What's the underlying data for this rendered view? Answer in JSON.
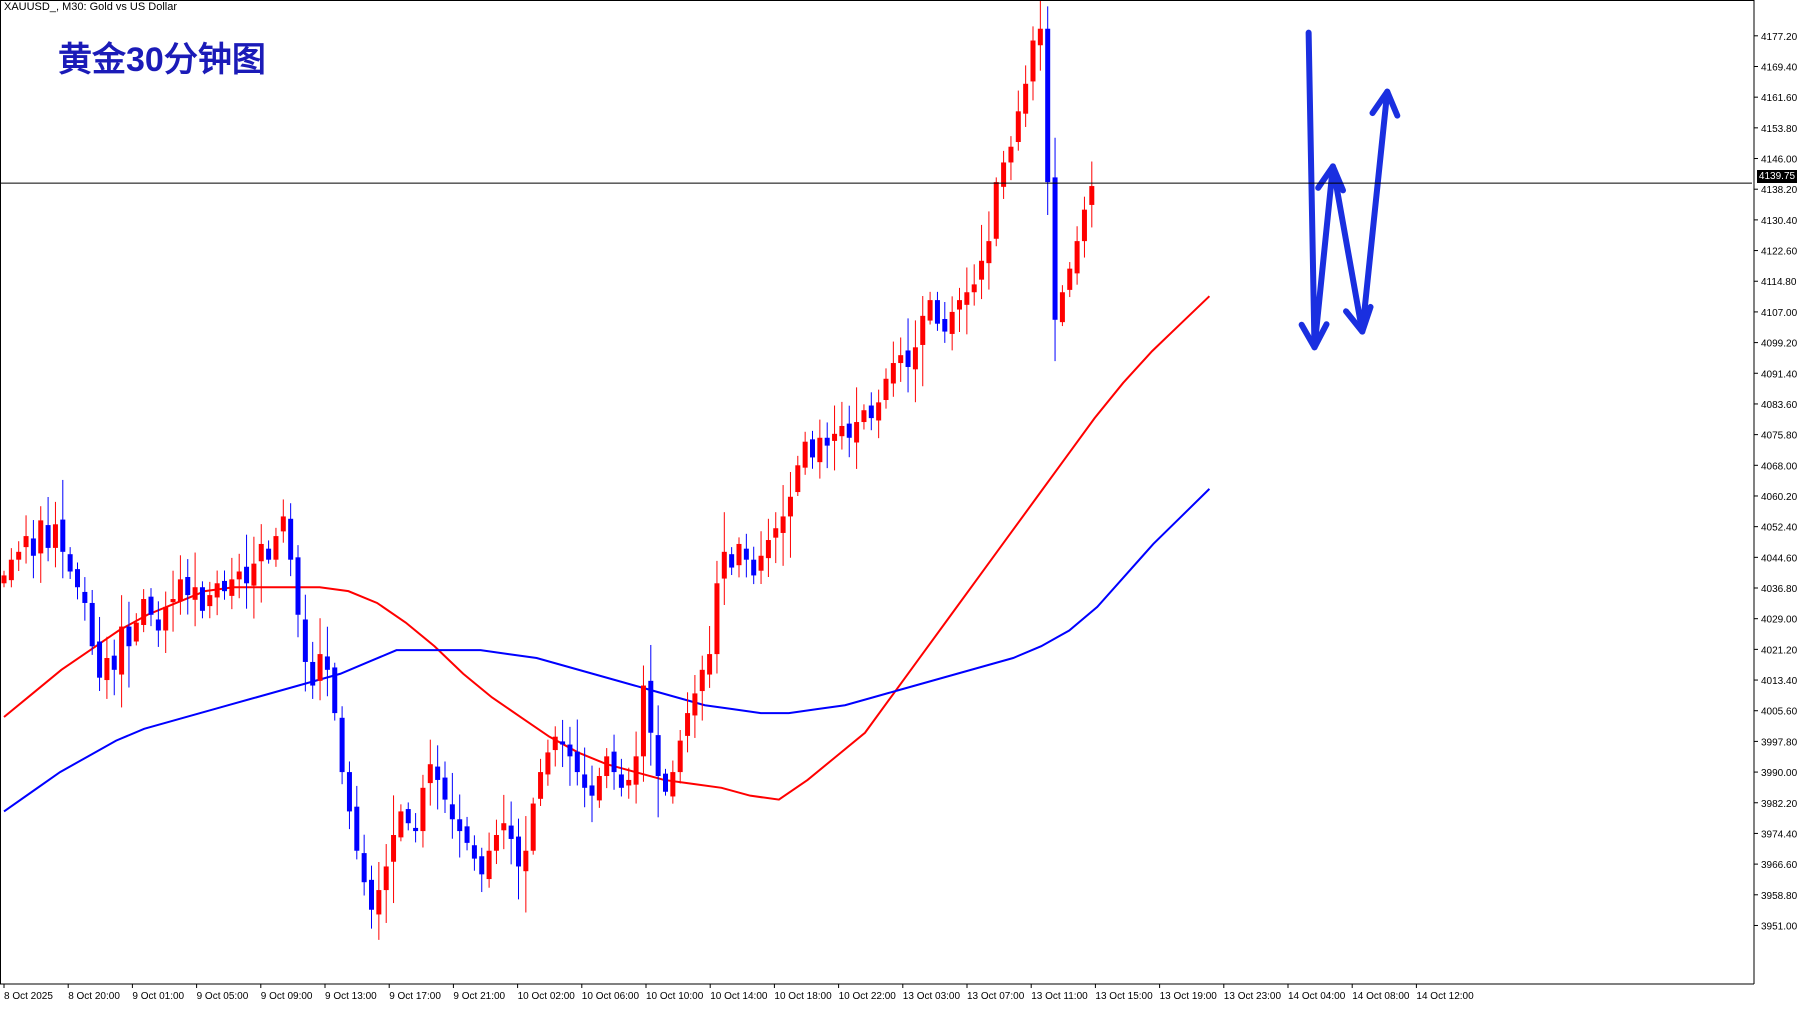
{
  "header": {
    "symbol_line": "XAUUSD_, M30:  Gold vs US Dollar"
  },
  "overlay": {
    "title": "黄金30分钟图"
  },
  "current_price": "4139.75",
  "colors": {
    "bull": "#ff0000",
    "bear": "#0000ff",
    "ma_fast": "#ff0000",
    "ma_slow": "#0000ff",
    "arrow": "#1a2fe0",
    "grid_axis": "#000000"
  },
  "chart_data": {
    "type": "candlestick",
    "symbol": "XAUUSD_",
    "timeframe": "M30",
    "ylim": [
      3944,
      4183
    ],
    "y_ticks": [
      "4177.20",
      "4169.40",
      "4161.60",
      "4153.80",
      "4146.00",
      "4138.20",
      "4130.40",
      "4122.60",
      "4114.80",
      "4107.00",
      "4099.20",
      "4091.40",
      "4083.60",
      "4075.80",
      "4068.00",
      "4060.20",
      "4052.40",
      "4044.60",
      "4036.80",
      "4029.00",
      "4021.20",
      "4013.40",
      "4005.60",
      "3997.80",
      "3990.00",
      "3982.20",
      "3974.40",
      "3966.60",
      "3958.80",
      "3951.00"
    ],
    "x_ticks": [
      "8 Oct 2025",
      "8 Oct 20:00",
      "9 Oct 01:00",
      "9 Oct 05:00",
      "9 Oct 09:00",
      "9 Oct 13:00",
      "9 Oct 17:00",
      "9 Oct 21:00",
      "10 Oct 02:00",
      "10 Oct 06:00",
      "10 Oct 10:00",
      "10 Oct 14:00",
      "10 Oct 18:00",
      "10 Oct 22:00",
      "13 Oct 03:00",
      "13 Oct 07:00",
      "13 Oct 11:00",
      "13 Oct 15:00",
      "13 Oct 19:00",
      "13 Oct 23:00",
      "14 Oct 04:00",
      "14 Oct 08:00",
      "14 Oct 12:00"
    ],
    "horizontal_line": 4139.75,
    "close_path": [
      4040,
      4044,
      4046,
      4050,
      4045,
      4054,
      4047,
      4053,
      4046,
      4041,
      4037,
      4033,
      4022,
      4014,
      4019,
      4016,
      4027,
      4022,
      4028,
      4034,
      4030,
      4026,
      4032,
      4034,
      4039,
      4035,
      4037,
      4031,
      4035,
      4038,
      4036,
      4039,
      4041,
      4038,
      4043,
      4048,
      4044,
      4050,
      4055,
      4044,
      4030,
      4018,
      4012,
      4020,
      4016,
      4005,
      3990,
      3980,
      3970,
      3962,
      3955,
      3960,
      3966,
      3974,
      3980,
      3977,
      3975,
      3986,
      3992,
      3988,
      3983,
      3978,
      3975,
      3972,
      3968,
      3964,
      3970,
      3974,
      3977,
      3973,
      3966,
      3970,
      3982,
      3990,
      3995,
      3999,
      3997,
      3994,
      3990,
      3986,
      3984,
      3989,
      3994,
      3990,
      3986,
      3988,
      3994,
      4012,
      4000,
      3989,
      3985,
      3990,
      3998,
      4005,
      4010,
      4016,
      4020,
      4038,
      4046,
      4042,
      4048,
      4044,
      4040,
      4045,
      4049,
      4052,
      4055,
      4060,
      4068,
      4074,
      4070,
      4075,
      4073,
      4076,
      4078,
      4075,
      4079,
      4082,
      4080,
      4084,
      4090,
      4094,
      4096,
      4093,
      4098,
      4106,
      4110,
      4104,
      4102,
      4107,
      4110,
      4112,
      4114,
      4120,
      4125,
      4140,
      4145,
      4149,
      4158,
      4165,
      4176,
      4179,
      4140,
      4105,
      4112,
      4118,
      4125,
      4133,
      4139
    ],
    "ma_fast": {
      "name": "",
      "values": [
        4004,
        4010,
        4016,
        4021,
        4026,
        4030,
        4033,
        4036,
        4037,
        4037,
        4037,
        4037,
        4036,
        4033,
        4028,
        4022,
        4015,
        4009,
        4004,
        3999,
        3995,
        3992,
        3990,
        3988,
        3987,
        3986,
        3984,
        3983,
        3988,
        3994,
        4000,
        4010,
        4020,
        4030,
        4040,
        4050,
        4060,
        4070,
        4080,
        4089,
        4097,
        4104,
        4111
      ]
    },
    "ma_slow": {
      "name": "",
      "values": [
        3980,
        3985,
        3990,
        3994,
        3998,
        4001,
        4003,
        4005,
        4007,
        4009,
        4011,
        4013,
        4015,
        4018,
        4021,
        4021,
        4021,
        4021,
        4020,
        4019,
        4017,
        4015,
        4013,
        4011,
        4009,
        4007,
        4006,
        4005,
        4005,
        4006,
        4007,
        4009,
        4011,
        4013,
        4015,
        4017,
        4019,
        4022,
        4026,
        4032,
        4040,
        4048,
        4055,
        4062
      ]
    },
    "forecast_arrow_path": [
      {
        "t": 177.5,
        "price": 4178
      },
      {
        "t": 178.3,
        "price": 4098
      },
      {
        "t": 180.8,
        "price": 4144
      },
      {
        "t": 184.8,
        "price": 4102
      },
      {
        "t": 188.2,
        "price": 4163
      }
    ]
  }
}
